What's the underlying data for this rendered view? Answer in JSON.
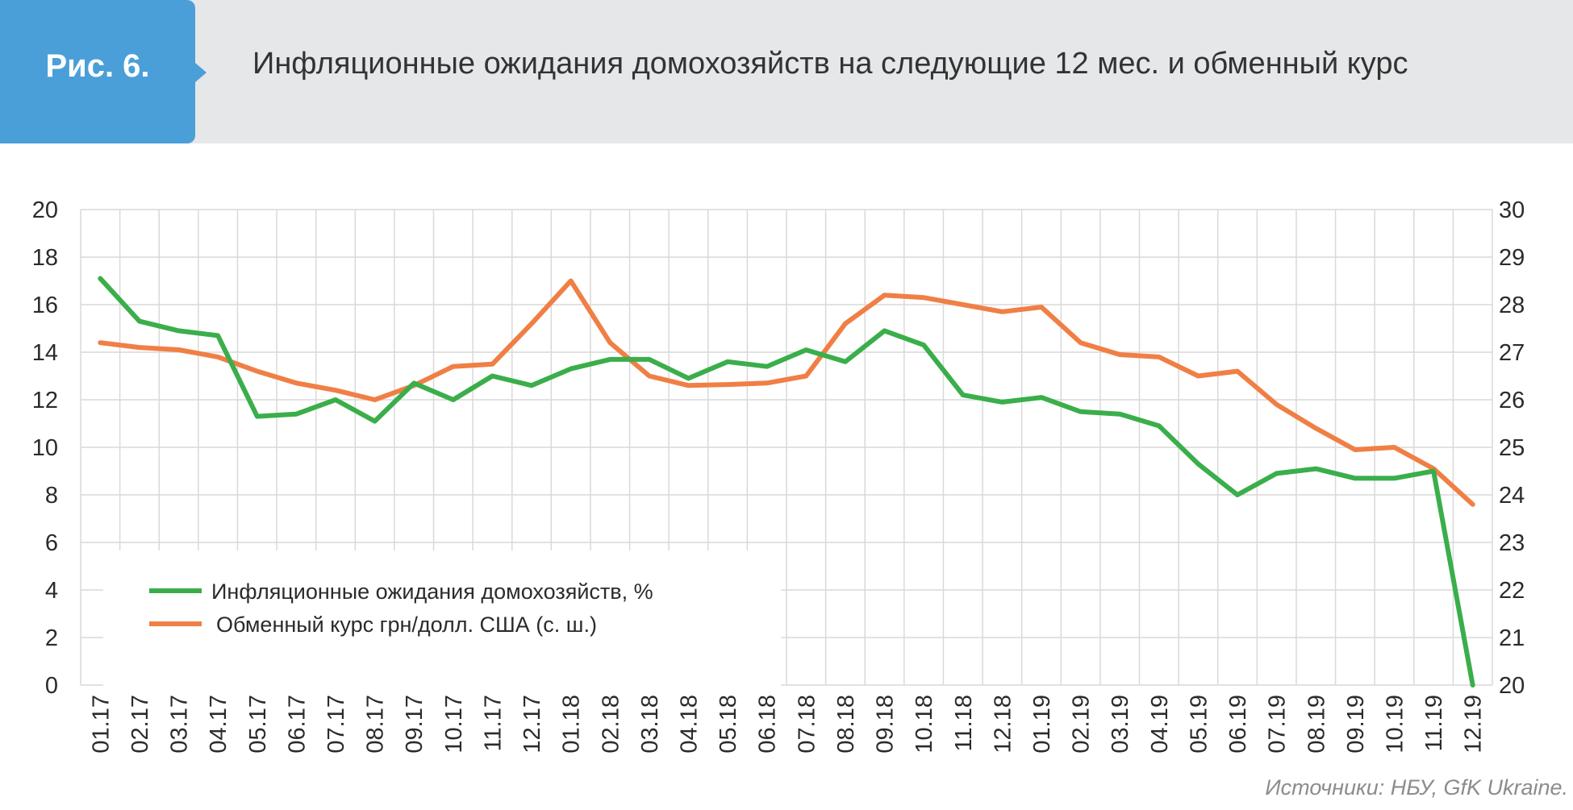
{
  "header": {
    "figure_label": "Рис. 6.",
    "title": "Инфляционные ожидания домохозяйств на следующие 12 мес. и обменный курс"
  },
  "source": "Источники: НБУ, GfK Ukraine.",
  "colors": {
    "inflation": "#3aae4a",
    "exchange": "#f07f45",
    "grid": "#d9d9d9",
    "tab": "#4a9fd8",
    "band": "#e6e7e9"
  },
  "chart_data": {
    "type": "line",
    "title": "",
    "categories": [
      "01.17",
      "02.17",
      "03.17",
      "04.17",
      "05.17",
      "06.17",
      "07.17",
      "08.17",
      "09.17",
      "10.17",
      "11.17",
      "12.17",
      "01.18",
      "02.18",
      "03.18",
      "04.18",
      "05.18",
      "06.18",
      "07.18",
      "08.18",
      "09.18",
      "10.18",
      "11.18",
      "12.18",
      "01.19",
      "02.19",
      "03.19",
      "04.19",
      "05.19",
      "06.19",
      "07.19",
      "08.19",
      "09.19",
      "10.19",
      "11.19",
      "12.19"
    ],
    "y_left": {
      "ylim": [
        0,
        20
      ],
      "ticks": [
        "0",
        "2",
        "4",
        "6",
        "8",
        "10",
        "12",
        "14",
        "16",
        "18",
        "20"
      ]
    },
    "y_right": {
      "ylim": [
        20,
        30
      ],
      "ticks": [
        "20",
        "21",
        "22",
        "23",
        "24",
        "25",
        "26",
        "27",
        "28",
        "29",
        "30"
      ]
    },
    "grid": true,
    "legend_position": "bottom-left",
    "series": [
      {
        "name": "Инфляционные ожидания домохозяйств, %",
        "axis": "left",
        "values": [
          17.1,
          15.3,
          14.9,
          14.7,
          11.3,
          11.4,
          12.0,
          11.1,
          12.7,
          12.0,
          13.0,
          12.6,
          13.3,
          13.7,
          13.7,
          12.9,
          13.6,
          13.4,
          14.1,
          13.6,
          14.9,
          14.3,
          12.2,
          11.9,
          12.1,
          11.5,
          11.4,
          10.9,
          9.3,
          8.0,
          8.9,
          9.1,
          8.7,
          8.7,
          9.0,
          0.0
        ]
      },
      {
        "name": "Обменный курс грн/долл. США (с. ш.)",
        "axis": "right",
        "values": [
          27.2,
          27.1,
          27.05,
          26.9,
          26.6,
          26.35,
          26.2,
          26.0,
          26.3,
          26.7,
          26.75,
          27.6,
          28.5,
          27.2,
          26.5,
          26.3,
          26.32,
          26.35,
          26.5,
          27.6,
          28.2,
          28.15,
          28.0,
          27.85,
          27.95,
          27.2,
          26.95,
          26.9,
          26.5,
          26.6,
          25.9,
          25.4,
          24.95,
          25.0,
          24.55,
          23.8
        ]
      }
    ]
  }
}
